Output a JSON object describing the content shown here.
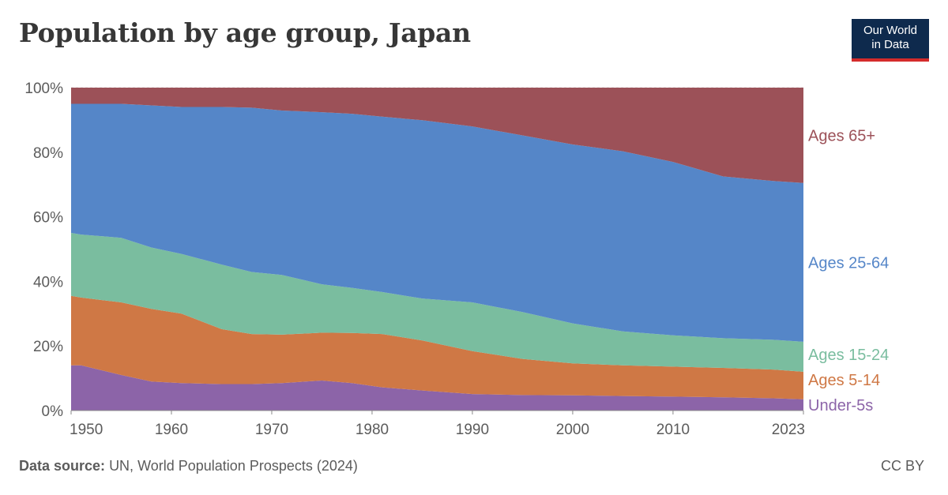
{
  "header": {
    "title": "Population by age group, Japan",
    "logo_line1": "Our World",
    "logo_line2": "in Data"
  },
  "footer": {
    "source_label": "Data source:",
    "source_text": "UN, World Population Prospects (2024)",
    "license": "CC BY"
  },
  "colors": {
    "under5": "#8c64a8",
    "age5_14": "#cf7845",
    "age15_24": "#7abd9f",
    "age25_64": "#5586c8",
    "age65": "#9c5158",
    "axis_text": "#5b5b5b",
    "grid": "#dddddd",
    "background": "#ffffff"
  },
  "chart_data": {
    "type": "area",
    "stacked": true,
    "normalized": true,
    "title": "Population by age group, Japan",
    "xlabel": "",
    "ylabel": "",
    "xlim": [
      1950,
      2023
    ],
    "ylim": [
      0,
      100
    ],
    "x_ticks": [
      1950,
      1960,
      1970,
      1980,
      1990,
      2000,
      2010,
      2023
    ],
    "y_ticks": [
      0,
      20,
      40,
      60,
      80,
      100
    ],
    "y_tick_suffix": "%",
    "x": [
      1950,
      1951,
      1955,
      1958,
      1961,
      1965,
      1968,
      1971,
      1975,
      1978,
      1981,
      1985,
      1990,
      1995,
      2000,
      2005,
      2010,
      2015,
      2020,
      2023
    ],
    "series": [
      {
        "name": "Under-5s",
        "color_key": "under5",
        "values": [
          14,
          14,
          11,
          9,
          8.5,
          8.2,
          8.2,
          8.5,
          9.3,
          8.5,
          7.2,
          6.2,
          5.1,
          4.8,
          4.7,
          4.5,
          4.3,
          4.1,
          3.8,
          3.5
        ]
      },
      {
        "name": "Ages 5-14",
        "color_key": "age5_14",
        "values": [
          21.5,
          21,
          22.5,
          22.5,
          21.5,
          17,
          15.5,
          15,
          14.8,
          15.5,
          16.5,
          15.5,
          13.3,
          11.2,
          9.9,
          9.5,
          9.3,
          9.1,
          8.9,
          8.5
        ]
      },
      {
        "name": "Ages 15-24",
        "color_key": "age15_24",
        "values": [
          19.5,
          19.5,
          20,
          19,
          18.5,
          20,
          19.2,
          18.5,
          15,
          14,
          13,
          13,
          15.1,
          14.5,
          12.4,
          10.5,
          9.7,
          9.2,
          9.2,
          9.3
        ]
      },
      {
        "name": "Ages 25-64",
        "color_key": "age25_64",
        "values": [
          40,
          40.5,
          41.5,
          44,
          45.5,
          48.8,
          50.9,
          50.9,
          53.3,
          53.9,
          54.3,
          55.2,
          54.5,
          54.7,
          55.4,
          55.8,
          53.7,
          50.1,
          49.2,
          49.2
        ]
      },
      {
        "name": "Ages 65+",
        "color_key": "age65",
        "values": [
          5,
          5,
          5,
          5.5,
          6,
          6,
          6.2,
          7.1,
          7.6,
          8.1,
          9,
          10.1,
          12,
          14.8,
          17.6,
          19.7,
          23,
          27.5,
          28.9,
          29.5
        ]
      }
    ],
    "legend_placement": "right, inline at series end"
  }
}
